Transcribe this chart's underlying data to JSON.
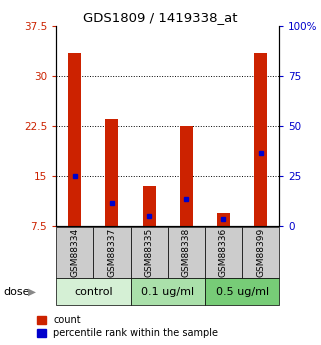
{
  "title": "GDS1809 / 1419338_at",
  "samples": [
    "GSM88334",
    "GSM88337",
    "GSM88335",
    "GSM88338",
    "GSM88336",
    "GSM88399"
  ],
  "red_values": [
    33.5,
    23.5,
    13.5,
    22.5,
    9.5,
    33.5
  ],
  "blue_values": [
    15.0,
    11.0,
    9.0,
    11.5,
    8.5,
    18.5
  ],
  "ylim_left": [
    7.5,
    37.5
  ],
  "ylim_right": [
    0,
    100
  ],
  "yticks_left": [
    7.5,
    15,
    22.5,
    30,
    37.5
  ],
  "yticks_right": [
    0,
    25,
    50,
    75,
    100
  ],
  "ytick_labels_left": [
    "7.5",
    "15",
    "22.5",
    "30",
    "37.5"
  ],
  "ytick_labels_right": [
    "0",
    "25",
    "50",
    "75",
    "100%"
  ],
  "dose_groups": [
    {
      "label": "control",
      "indices": [
        0,
        1
      ],
      "color": "#d5f0d5"
    },
    {
      "label": "0.1 ug/ml",
      "indices": [
        2,
        3
      ],
      "color": "#aae0aa"
    },
    {
      "label": "0.5 ug/ml",
      "indices": [
        4,
        5
      ],
      "color": "#77cc77"
    }
  ],
  "bar_color": "#cc2200",
  "blue_color": "#0000cc",
  "bar_width": 0.35,
  "grid_color": "#000000",
  "label_color_left": "#cc2200",
  "label_color_right": "#0000cc",
  "legend_items": [
    "count",
    "percentile rank within the sample"
  ],
  "dose_label": "dose",
  "sample_box_color": "#cccccc"
}
